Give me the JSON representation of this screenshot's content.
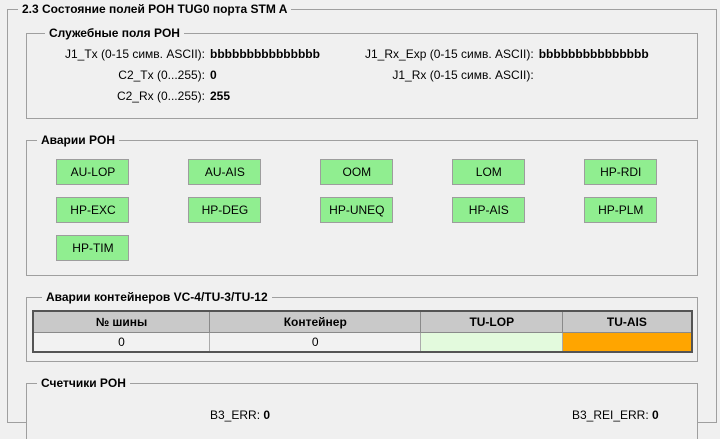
{
  "window": {
    "title": "2.3 Состояние полей POH TUG0 порта STM A"
  },
  "service_fields": {
    "title": "Служебные поля POH",
    "left": [
      {
        "label": "J1_Tx (0-15 симв. ASCII):",
        "value": "bbbbbbbbbbbbbbb"
      },
      {
        "label": "C2_Tx (0...255):",
        "value": "0"
      },
      {
        "label": "C2_Rx (0...255):",
        "value": "255"
      }
    ],
    "right": [
      {
        "label": "J1_Rx_Exp (0-15 симв. ASCII):",
        "value": "bbbbbbbbbbbbbbb"
      },
      {
        "label": "J1_Rx (0-15 симв. ASCII):",
        "value": ""
      }
    ]
  },
  "poh_alarms": {
    "title": "Аварии POH",
    "ok_color": "#90ee90",
    "indicators": [
      "AU-LOP",
      "AU-AIS",
      "OOM",
      "LOM",
      "HP-RDI",
      "HP-EXC",
      "HP-DEG",
      "HP-UNEQ",
      "HP-AIS",
      "HP-PLM",
      "HP-TIM"
    ]
  },
  "container_alarms": {
    "title": "Аварии контейнеров VC-4/TU-3/TU-12",
    "table": {
      "columns": [
        "№ шины",
        "Контейнер",
        "TU-LOP",
        "TU-AIS"
      ],
      "column_widths_pct": [
        26.8,
        32.1,
        21.5,
        19.6
      ],
      "rows": [
        {
          "bus": "0",
          "container": "0",
          "tu_lop_text": "",
          "tu_lop_color": "#e3fadd",
          "tu_ais_text": "",
          "tu_ais_color": "#ffa500"
        }
      ]
    }
  },
  "counters": {
    "title": "Счетчики POH",
    "items": [
      {
        "label": "B3_ERR:",
        "value": "0"
      },
      {
        "label": "B3_REI_ERR:",
        "value": "0"
      }
    ]
  }
}
